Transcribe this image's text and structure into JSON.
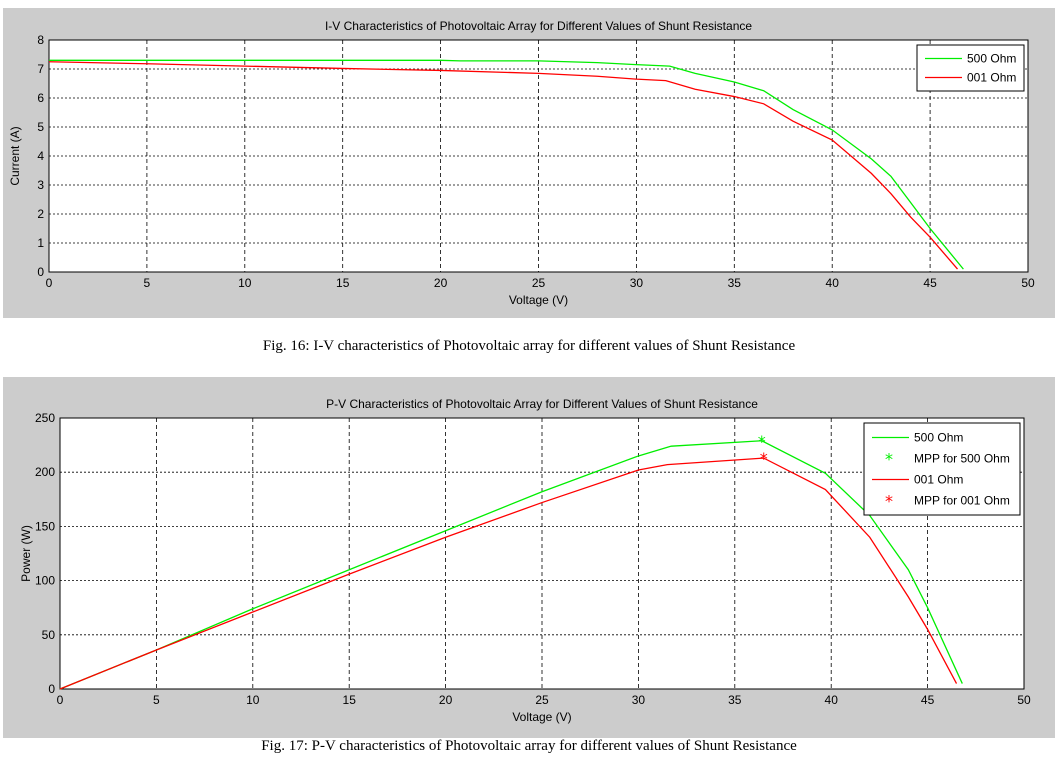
{
  "chart_data": [
    {
      "type": "line",
      "title": "I-V Characteristics of Photovoltaic Array for Different Values of Shunt Resistance",
      "xlabel": "Voltage (V)",
      "ylabel": "Current (A)",
      "xlim": [
        0,
        50
      ],
      "ylim": [
        0,
        8
      ],
      "xticks": [
        0,
        5,
        10,
        15,
        20,
        25,
        30,
        35,
        40,
        45,
        50
      ],
      "yticks": [
        0,
        1,
        2,
        3,
        4,
        5,
        6,
        7,
        8
      ],
      "grid": true,
      "legend": "top-right",
      "series": [
        {
          "name": "500 Ohm",
          "color": "#00ee00",
          "x": [
            0,
            10,
            20,
            21,
            25,
            28,
            30,
            31.7,
            33,
            35,
            36.5,
            38,
            40,
            42,
            43,
            44,
            45,
            46.7
          ],
          "y": [
            7.3,
            7.3,
            7.3,
            7.28,
            7.28,
            7.22,
            7.15,
            7.1,
            6.85,
            6.55,
            6.25,
            5.6,
            4.9,
            3.9,
            3.3,
            2.4,
            1.5,
            0.1
          ]
        },
        {
          "name": "001 Ohm",
          "color": "#ff0000",
          "x": [
            0,
            5,
            10,
            15,
            20,
            25,
            28,
            30,
            31.5,
            33,
            35,
            36.5,
            38,
            40,
            42,
            43,
            44,
            45,
            46.4
          ],
          "y": [
            7.25,
            7.18,
            7.1,
            7.02,
            6.95,
            6.85,
            6.75,
            6.65,
            6.6,
            6.3,
            6.05,
            5.8,
            5.2,
            4.55,
            3.4,
            2.7,
            1.9,
            1.2,
            0.1
          ]
        }
      ],
      "caption": "Fig. 16: I-V characteristics of Photovoltaic array for different values of Shunt Resistance"
    },
    {
      "type": "line",
      "title": "P-V Characteristics of Photovoltaic Array for Different Values of Shunt Resistance",
      "xlabel": "Voltage (V)",
      "ylabel": "Power (W)",
      "xlim": [
        0,
        50
      ],
      "ylim": [
        0,
        250
      ],
      "xticks": [
        0,
        5,
        10,
        15,
        20,
        25,
        30,
        35,
        40,
        45,
        50
      ],
      "yticks": [
        0,
        50,
        100,
        150,
        200,
        250
      ],
      "grid": true,
      "legend": "top-right",
      "series": [
        {
          "name": "500 Ohm",
          "color": "#00ee00",
          "x": [
            0,
            5,
            10,
            15,
            20,
            25,
            30,
            31.7,
            36.4,
            39.7,
            42,
            44,
            45,
            46.8
          ],
          "y": [
            0,
            36,
            74,
            110,
            146,
            182,
            215,
            224,
            229,
            199,
            160,
            110,
            75,
            5
          ]
        },
        {
          "name": "MPP for 500 Ohm",
          "color": "#00ee00",
          "marker": "*",
          "x": [
            36.4
          ],
          "y": [
            229
          ]
        },
        {
          "name": "001 Ohm",
          "color": "#ff0000",
          "x": [
            0,
            5,
            10,
            15,
            20,
            25,
            30,
            31.5,
            36.5,
            39.7,
            42,
            44,
            45,
            46.5
          ],
          "y": [
            0,
            36,
            71,
            106,
            140,
            172,
            202,
            207,
            213,
            184,
            140,
            85,
            55,
            5
          ]
        },
        {
          "name": "MPP for 001 Ohm",
          "color": "#ff0000",
          "marker": "*",
          "x": [
            36.5
          ],
          "y": [
            213
          ]
        }
      ],
      "caption": "Fig. 17: P-V characteristics of Photovoltaic array for different values of Shunt Resistance"
    }
  ]
}
